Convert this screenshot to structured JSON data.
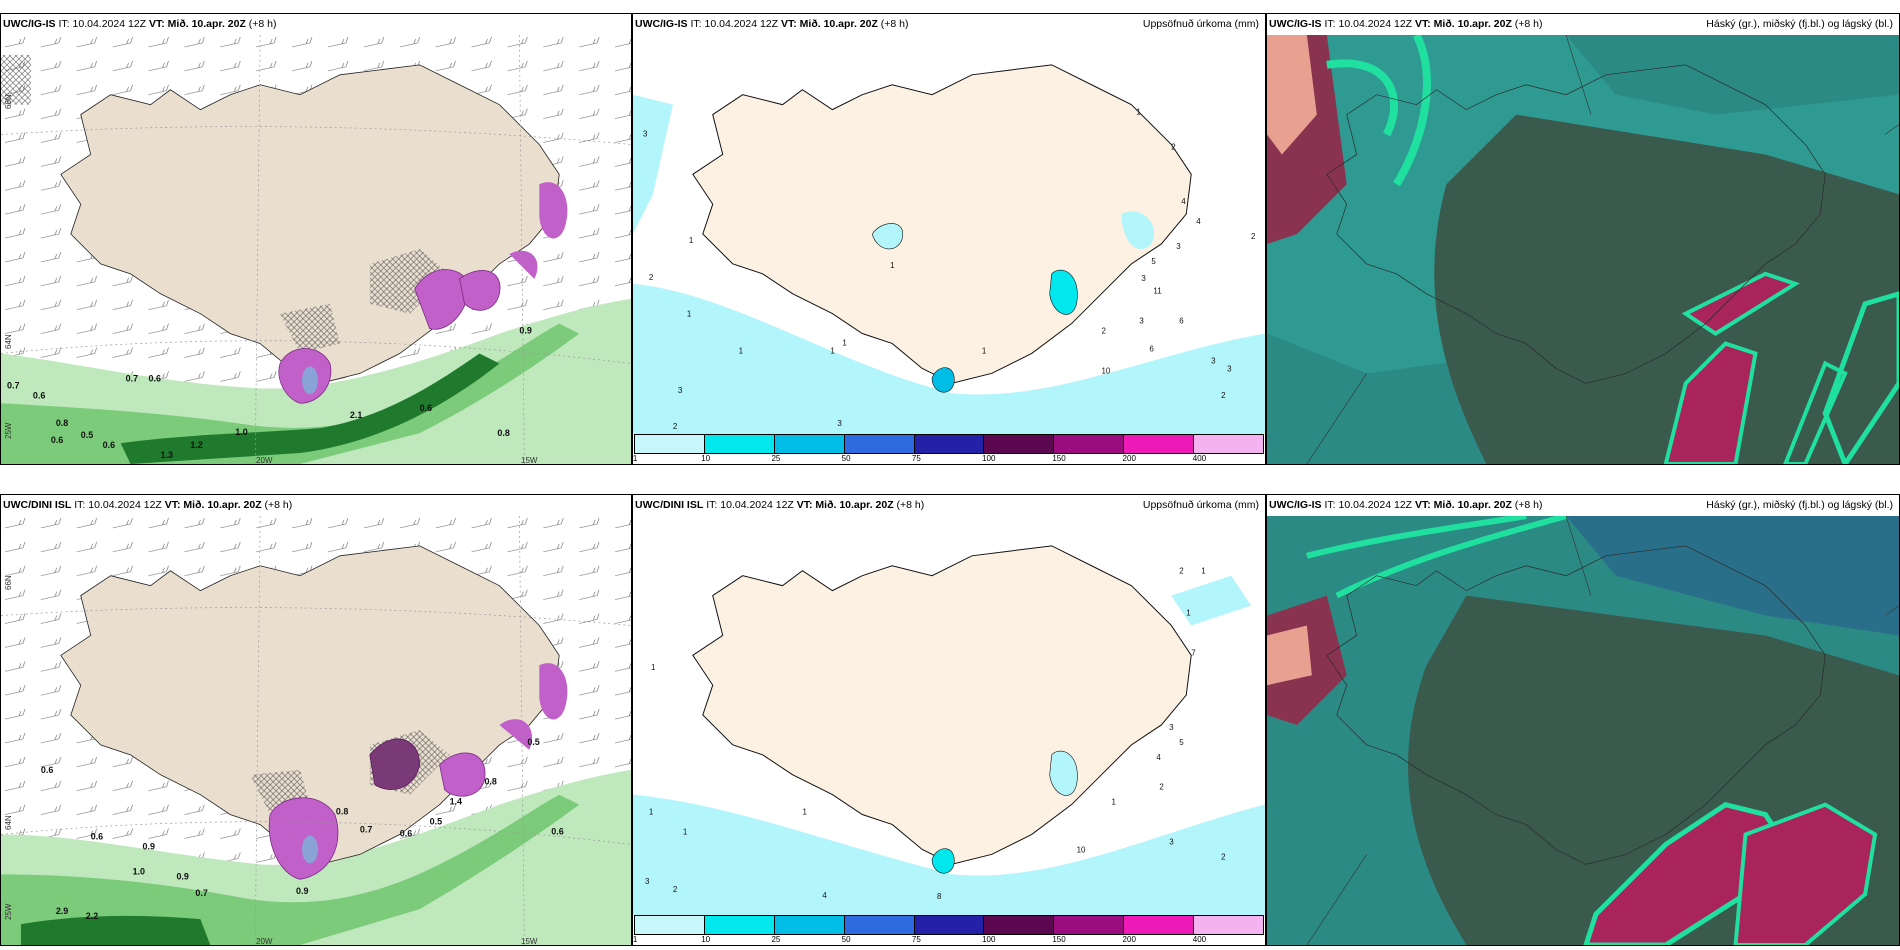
{
  "panels": {
    "top_left": {
      "model": "UWC/IG-IS",
      "it_label": "IT:",
      "it_value": "10.04.2024 12Z",
      "vt_label": "VT:",
      "vt_value": "Mið. 10.apr. 20Z",
      "lead": "(+8 h)",
      "right_title": ""
    },
    "top_mid": {
      "model": "UWC/IG-IS",
      "it_label": "IT:",
      "it_value": "10.04.2024 12Z",
      "vt_label": "VT:",
      "vt_value": "Mið. 10.apr. 20Z",
      "lead": "(+8 h)",
      "right_title": "Uppsöfnuð úrkoma (mm)"
    },
    "top_right": {
      "model": "UWC/IG-IS",
      "it_label": "IT:",
      "it_value": "10.04.2024 12Z",
      "vt_label": "VT:",
      "vt_value": "Mið. 10.apr. 20Z",
      "lead": "(+8 h)",
      "right_title": "Háský (gr.), miðský (fj.bl.) og lágský (bl.)"
    },
    "bot_left": {
      "model": "UWC/DINI ISL",
      "it_label": "IT:",
      "it_value": "10.04.2024 12Z",
      "vt_label": "VT:",
      "vt_value": "Mið. 10.apr. 20Z",
      "lead": "(+8 h)",
      "right_title": ""
    },
    "bot_mid": {
      "model": "UWC/DINI ISL",
      "it_label": "IT:",
      "it_value": "10.04.2024 12Z",
      "vt_label": "VT:",
      "vt_value": "Mið. 10.apr. 20Z",
      "lead": "(+8 h)",
      "right_title": "Uppsöfnuð úrkoma (mm)"
    },
    "bot_right": {
      "model": "UWC/IG-IS",
      "it_label": "IT:",
      "it_value": "10.04.2024 12Z",
      "vt_label": "VT:",
      "vt_value": "Mið. 10.apr. 20Z",
      "lead": "(+8 h)",
      "right_title": "Háský (gr.), miðský (fj.bl.) og lágský (bl.)"
    }
  },
  "axis_labels": {
    "lat_66n": "66N",
    "lat_64n": "64N",
    "lon_20w": "20W",
    "lon_15w": "15W",
    "lon_25w": "25W"
  },
  "precip_scale": {
    "labels": [
      "1",
      "10",
      "25",
      "50",
      "75",
      "100",
      "150",
      "200",
      "400"
    ],
    "colors": [
      "#c8f7fb",
      "#00e8ee",
      "#00bde8",
      "#2f6be0",
      "#2420a8",
      "#5c0850",
      "#9a0c80",
      "#ee1ab8",
      "#f4b2f0"
    ]
  },
  "map_colors": {
    "land": "#eadfcf",
    "land_mid": "#fdf1e4",
    "sea": "#ffffff",
    "light_precip": "#b2f5fb",
    "green_light": "#bfe8bd",
    "green_mid": "#7ccb7b",
    "green_dark": "#1f7a2d",
    "purple": "#c060c8",
    "cloud_teal": "#2c8a84",
    "cloud_dark": "#3a5a4e",
    "cloud_mint": "#20e0a0",
    "cloud_red": "#a8245a"
  },
  "top_left_values": [
    "0.7",
    "0.6",
    "0.8",
    "0.6",
    "0.5",
    "0.6",
    "1.2",
    "1.3",
    "1.0",
    "0.9",
    "0.8",
    "2.1",
    "0.6",
    "0.7",
    "0.6"
  ],
  "bot_left_values": [
    "0.6",
    "0.6",
    "0.9",
    "1.0",
    "0.9",
    "0.7",
    "2.2",
    "2.9",
    "0.8",
    "0.7",
    "0.6",
    "0.5",
    "0.5",
    "1.4",
    "0.8",
    "0.9",
    "0.6"
  ],
  "top_mid_values": [
    "3",
    "2",
    "1",
    "1",
    "3",
    "2",
    "1",
    "1",
    "1",
    "3",
    "1",
    "1",
    "6",
    "5",
    "3",
    "6",
    "2",
    "3",
    "3",
    "2",
    "10",
    "11",
    "4",
    "4",
    "3",
    "2",
    "1",
    "2",
    "3"
  ],
  "bot_mid_values": [
    "1",
    "1",
    "1",
    "3",
    "2",
    "1",
    "4",
    "8",
    "10",
    "3",
    "2",
    "2",
    "1",
    "5",
    "4",
    "7",
    "2",
    "3",
    "1",
    "1"
  ]
}
